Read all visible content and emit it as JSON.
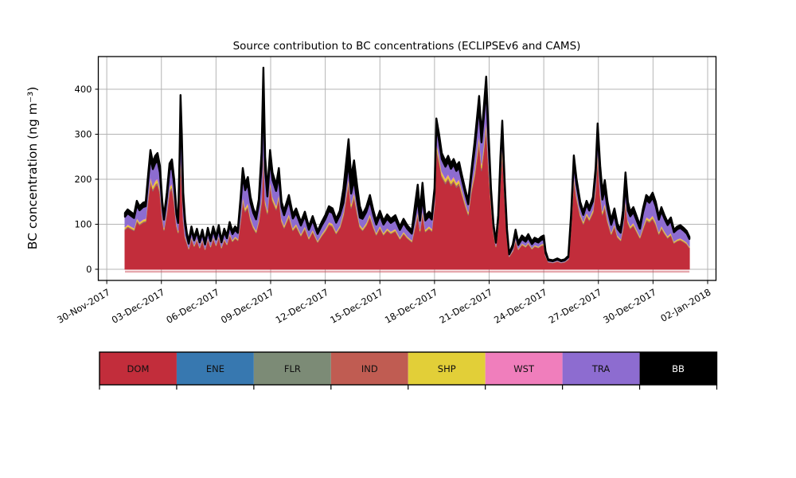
{
  "figure": {
    "title": "Source contribution to BC concentrations (ECLIPSEv6 and CAMS)"
  },
  "axes": {
    "ylabel": "BC concentration (ng m⁻³)",
    "yticks": [
      0,
      100,
      200,
      300,
      400
    ],
    "xtick_labels": [
      "30-Nov-2017",
      "03-Dec-2017",
      "06-Dec-2017",
      "09-Dec-2017",
      "12-Dec-2017",
      "15-Dec-2017",
      "18-Dec-2017",
      "21-Dec-2017",
      "24-Dec-2017",
      "27-Dec-2017",
      "30-Dec-2017",
      "02-Jan-2018"
    ],
    "xtick_days": [
      -1,
      2,
      5,
      8,
      11,
      14,
      17,
      20,
      23,
      26,
      29,
      32
    ],
    "grid": true,
    "grid_color": "#b4b4b4"
  },
  "legend": {
    "position": "bottom",
    "items": [
      {
        "code": "DOM",
        "color": "#c22d3b",
        "text_color": "#111111"
      },
      {
        "code": "ENE",
        "color": "#3778b0",
        "text_color": "#111111"
      },
      {
        "code": "FLR",
        "color": "#7c8b76",
        "text_color": "#111111"
      },
      {
        "code": "IND",
        "color": "#c05c52",
        "text_color": "#111111"
      },
      {
        "code": "SHP",
        "color": "#e2cf38",
        "text_color": "#111111"
      },
      {
        "code": "WST",
        "color": "#f07ebc",
        "text_color": "#111111"
      },
      {
        "code": "TRA",
        "color": "#8d6cd0",
        "text_color": "#111111"
      },
      {
        "code": "BB",
        "color": "#000000",
        "text_color": "#ffffff"
      }
    ]
  },
  "chart_data": {
    "type": "area",
    "stacked": true,
    "title": "Source contribution to BC concentrations (ECLIPSEv6 and CAMS)",
    "xlabel": "",
    "ylabel": "BC concentration (ng m-3)",
    "ylim": [
      -25,
      472
    ],
    "x_unit": "days since 01-Dec-2017 00:00",
    "x_range_days": [
      0,
      31
    ],
    "series_order": [
      "DOM",
      "ENE",
      "FLR",
      "IND",
      "SHP",
      "WST",
      "TRA",
      "BB"
    ],
    "thin_layer_fractions_of_total": {
      "ENE": 0.002,
      "FLR": 0.003,
      "IND": 0.015,
      "SHP": 0.025,
      "WST": 0.01
    },
    "dom_fraction_segments": [
      [
        1.2,
        0.7
      ],
      [
        3.0,
        0.73
      ],
      [
        3.3,
        0.63
      ],
      [
        6.3,
        0.72
      ],
      [
        7.4,
        0.67
      ],
      [
        7.75,
        0.57
      ],
      [
        11.9,
        0.7
      ],
      [
        12.9,
        0.66
      ],
      [
        15.9,
        0.7
      ],
      [
        16.45,
        0.64
      ],
      [
        16.95,
        0.7
      ],
      [
        19.1,
        0.79
      ],
      [
        20.0,
        0.73
      ],
      [
        21.2,
        0.8
      ],
      [
        24.4,
        0.72
      ],
      [
        26.05,
        0.78
      ],
      [
        27.3,
        0.7
      ],
      [
        27.7,
        0.68
      ],
      [
        28.4,
        0.7
      ],
      [
        31.1,
        0.655
      ]
    ],
    "bb_fraction_segments": [
      [
        3.0,
        0.065
      ],
      [
        3.3,
        0.09
      ],
      [
        6.3,
        0.08
      ],
      [
        7.4,
        0.075
      ],
      [
        7.75,
        0.115
      ],
      [
        11.9,
        0.075
      ],
      [
        12.9,
        0.18
      ],
      [
        15.9,
        0.08
      ],
      [
        16.45,
        0.17
      ],
      [
        16.95,
        0.08
      ],
      [
        19.1,
        0.05
      ],
      [
        20.0,
        0.06
      ],
      [
        21.2,
        0.05
      ],
      [
        24.4,
        0.1
      ],
      [
        26.05,
        0.055
      ],
      [
        27.3,
        0.1
      ],
      [
        27.7,
        0.13
      ],
      [
        28.4,
        0.08
      ],
      [
        31.1,
        0.065
      ]
    ],
    "tra_rule": "TRA = total - DOM - BB - thin layers (remainder)",
    "total_points": [
      [
        0,
        125
      ],
      [
        0.15,
        133
      ],
      [
        0.3,
        128
      ],
      [
        0.5,
        122
      ],
      [
        0.65,
        152
      ],
      [
        0.8,
        140
      ],
      [
        1.0,
        148
      ],
      [
        1.14,
        150
      ],
      [
        1.27,
        210
      ],
      [
        1.4,
        265
      ],
      [
        1.53,
        238
      ],
      [
        1.66,
        252
      ],
      [
        1.79,
        258
      ],
      [
        1.92,
        230
      ],
      [
        2.05,
        150
      ],
      [
        2.14,
        118
      ],
      [
        2.3,
        170
      ],
      [
        2.45,
        235
      ],
      [
        2.58,
        244
      ],
      [
        2.7,
        200
      ],
      [
        2.83,
        130
      ],
      [
        2.92,
        110
      ],
      [
        3.0,
        250
      ],
      [
        3.05,
        387
      ],
      [
        3.12,
        300
      ],
      [
        3.2,
        170
      ],
      [
        3.3,
        110
      ],
      [
        3.4,
        80
      ],
      [
        3.5,
        62
      ],
      [
        3.65,
        95
      ],
      [
        3.8,
        70
      ],
      [
        3.95,
        90
      ],
      [
        4.1,
        65
      ],
      [
        4.25,
        88
      ],
      [
        4.4,
        60
      ],
      [
        4.55,
        92
      ],
      [
        4.7,
        68
      ],
      [
        4.85,
        95
      ],
      [
        5.0,
        72
      ],
      [
        5.15,
        98
      ],
      [
        5.3,
        65
      ],
      [
        5.45,
        90
      ],
      [
        5.6,
        75
      ],
      [
        5.75,
        105
      ],
      [
        5.9,
        85
      ],
      [
        6.05,
        95
      ],
      [
        6.2,
        88
      ],
      [
        6.35,
        160
      ],
      [
        6.47,
        225
      ],
      [
        6.6,
        190
      ],
      [
        6.75,
        205
      ],
      [
        6.9,
        160
      ],
      [
        7.05,
        135
      ],
      [
        7.2,
        120
      ],
      [
        7.35,
        155
      ],
      [
        7.5,
        260
      ],
      [
        7.6,
        448
      ],
      [
        7.7,
        250
      ],
      [
        7.82,
        175
      ],
      [
        7.97,
        265
      ],
      [
        8.1,
        215
      ],
      [
        8.3,
        188
      ],
      [
        8.45,
        225
      ],
      [
        8.6,
        150
      ],
      [
        8.74,
        130
      ],
      [
        9.0,
        165
      ],
      [
        9.22,
        122
      ],
      [
        9.4,
        135
      ],
      [
        9.66,
        105
      ],
      [
        9.88,
        128
      ],
      [
        10.1,
        95
      ],
      [
        10.31,
        118
      ],
      [
        10.58,
        85
      ],
      [
        10.8,
        105
      ],
      [
        11.0,
        120
      ],
      [
        11.2,
        140
      ],
      [
        11.4,
        135
      ],
      [
        11.6,
        112
      ],
      [
        11.8,
        130
      ],
      [
        12.0,
        180
      ],
      [
        12.28,
        289
      ],
      [
        12.42,
        205
      ],
      [
        12.58,
        242
      ],
      [
        12.75,
        185
      ],
      [
        12.9,
        140
      ],
      [
        13.05,
        122
      ],
      [
        13.25,
        138
      ],
      [
        13.45,
        165
      ],
      [
        13.65,
        130
      ],
      [
        13.8,
        108
      ],
      [
        14.0,
        130
      ],
      [
        14.2,
        108
      ],
      [
        14.4,
        122
      ],
      [
        14.6,
        112
      ],
      [
        14.85,
        120
      ],
      [
        15.1,
        95
      ],
      [
        15.3,
        112
      ],
      [
        15.5,
        98
      ],
      [
        15.75,
        86
      ],
      [
        15.95,
        150
      ],
      [
        16.08,
        188
      ],
      [
        16.2,
        130
      ],
      [
        16.34,
        192
      ],
      [
        16.5,
        118
      ],
      [
        16.7,
        128
      ],
      [
        16.85,
        120
      ],
      [
        17.0,
        180
      ],
      [
        17.1,
        335
      ],
      [
        17.25,
        300
      ],
      [
        17.4,
        258
      ],
      [
        17.6,
        240
      ],
      [
        17.75,
        252
      ],
      [
        17.9,
        235
      ],
      [
        18.05,
        245
      ],
      [
        18.2,
        230
      ],
      [
        18.35,
        238
      ],
      [
        18.5,
        210
      ],
      [
        18.7,
        175
      ],
      [
        18.85,
        152
      ],
      [
        19.0,
        210
      ],
      [
        19.2,
        282
      ],
      [
        19.32,
        330
      ],
      [
        19.45,
        385
      ],
      [
        19.58,
        300
      ],
      [
        19.7,
        355
      ],
      [
        19.84,
        428
      ],
      [
        19.97,
        300
      ],
      [
        20.1,
        180
      ],
      [
        20.24,
        100
      ],
      [
        20.37,
        62
      ],
      [
        20.5,
        120
      ],
      [
        20.62,
        250
      ],
      [
        20.72,
        330
      ],
      [
        20.85,
        200
      ],
      [
        20.98,
        90
      ],
      [
        21.1,
        35
      ],
      [
        21.3,
        55
      ],
      [
        21.45,
        88
      ],
      [
        21.6,
        60
      ],
      [
        21.8,
        75
      ],
      [
        22.0,
        68
      ],
      [
        22.15,
        78
      ],
      [
        22.35,
        62
      ],
      [
        22.5,
        70
      ],
      [
        22.7,
        66
      ],
      [
        22.85,
        72
      ],
      [
        23.0,
        75
      ],
      [
        23.1,
        40
      ],
      [
        23.25,
        22
      ],
      [
        23.5,
        20
      ],
      [
        23.75,
        24
      ],
      [
        23.95,
        20
      ],
      [
        24.15,
        22
      ],
      [
        24.35,
        30
      ],
      [
        24.5,
        120
      ],
      [
        24.65,
        253
      ],
      [
        24.8,
        200
      ],
      [
        25.0,
        150
      ],
      [
        25.17,
        128
      ],
      [
        25.35,
        152
      ],
      [
        25.5,
        138
      ],
      [
        25.7,
        160
      ],
      [
        25.85,
        225
      ],
      [
        25.96,
        324
      ],
      [
        26.1,
        230
      ],
      [
        26.22,
        172
      ],
      [
        26.35,
        198
      ],
      [
        26.5,
        150
      ],
      [
        26.7,
        110
      ],
      [
        26.88,
        135
      ],
      [
        27.05,
        100
      ],
      [
        27.22,
        90
      ],
      [
        27.35,
        130
      ],
      [
        27.49,
        215
      ],
      [
        27.62,
        150
      ],
      [
        27.75,
        128
      ],
      [
        27.92,
        138
      ],
      [
        28.1,
        118
      ],
      [
        28.28,
        98
      ],
      [
        28.45,
        135
      ],
      [
        28.63,
        165
      ],
      [
        28.8,
        158
      ],
      [
        28.98,
        170
      ],
      [
        29.15,
        150
      ],
      [
        29.32,
        118
      ],
      [
        29.46,
        138
      ],
      [
        29.63,
        120
      ],
      [
        29.8,
        105
      ],
      [
        29.98,
        115
      ],
      [
        30.15,
        88
      ],
      [
        30.33,
        95
      ],
      [
        30.5,
        98
      ],
      [
        30.68,
        92
      ],
      [
        30.85,
        85
      ],
      [
        31.0,
        72
      ]
    ]
  }
}
